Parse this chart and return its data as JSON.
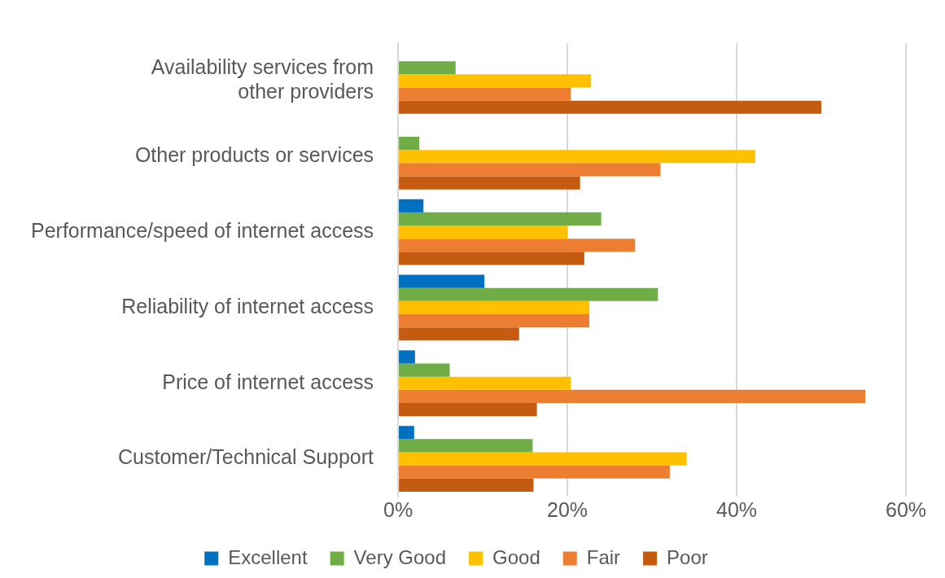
{
  "chart_data": {
    "type": "bar",
    "orientation": "horizontal",
    "categories": [
      "Availability services from other providers",
      "Other products or services",
      "Performance/speed of internet access",
      "Reliability of internet access",
      "Price of internet access",
      "Customer/Technical Support"
    ],
    "series": [
      {
        "name": "Excellent",
        "color": "#0070c0",
        "values": [
          null,
          null,
          3,
          10.2,
          2,
          1.9
        ]
      },
      {
        "name": "Very Good",
        "color": "#70ad47",
        "values": [
          6.8,
          2.5,
          24,
          30.7,
          6.1,
          15.9
        ]
      },
      {
        "name": "Good",
        "color": "#ffc000",
        "values": [
          22.8,
          42.2,
          20,
          22.6,
          20.4,
          34.1
        ]
      },
      {
        "name": "Fair",
        "color": "#ed7d31",
        "values": [
          20.4,
          31,
          28,
          22.6,
          55.2,
          32.1
        ]
      },
      {
        "name": "Poor",
        "color": "#c55a11",
        "values": [
          50,
          21.5,
          22,
          14.3,
          16.4,
          16
        ]
      }
    ],
    "xlim": [
      0,
      60
    ],
    "xticks": [
      {
        "value": 0,
        "label": "0%"
      },
      {
        "value": 20,
        "label": "20%"
      },
      {
        "value": 40,
        "label": "40%"
      },
      {
        "value": 60,
        "label": "60%"
      }
    ],
    "grid": "x",
    "legend": "bottom"
  }
}
